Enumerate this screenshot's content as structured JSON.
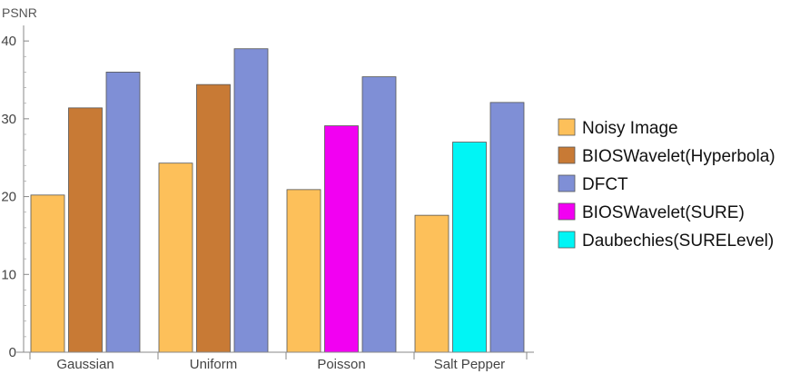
{
  "chart_data": {
    "type": "bar",
    "ylabel": "PSNR",
    "ylim": [
      0,
      42
    ],
    "yticks": [
      0,
      10,
      20,
      30,
      40
    ],
    "grid": false,
    "legend_position": "right",
    "categories": [
      "Gaussian",
      "Uniform",
      "Poisson",
      "Salt Pepper"
    ],
    "series": [
      {
        "name": "Noisy Image",
        "color": "#FDC05A"
      },
      {
        "name": "BIOSWavelet(Hyperbola)",
        "color": "#C87A35"
      },
      {
        "name": "DFCT",
        "color": "#7F8FD6"
      },
      {
        "name": "BIOSWavelet(SURE)",
        "color": "#F200F2"
      },
      {
        "name": "Daubechies(SURELevel)",
        "color": "#00F5F5"
      }
    ],
    "groups": [
      {
        "category": "Gaussian",
        "bars": [
          {
            "series": "Noisy Image",
            "value": 20.2
          },
          {
            "series": "BIOSWavelet(Hyperbola)",
            "value": 31.4
          },
          {
            "series": "DFCT",
            "value": 36.0
          }
        ]
      },
      {
        "category": "Uniform",
        "bars": [
          {
            "series": "Noisy Image",
            "value": 24.3
          },
          {
            "series": "BIOSWavelet(Hyperbola)",
            "value": 34.4
          },
          {
            "series": "DFCT",
            "value": 39.0
          }
        ]
      },
      {
        "category": "Poisson",
        "bars": [
          {
            "series": "Noisy Image",
            "value": 20.9
          },
          {
            "series": "BIOSWavelet(SURE)",
            "value": 29.1
          },
          {
            "series": "DFCT",
            "value": 35.4
          }
        ]
      },
      {
        "category": "Salt Pepper",
        "bars": [
          {
            "series": "Noisy Image",
            "value": 17.6
          },
          {
            "series": "Daubechies(SURELevel)",
            "value": 27.0
          },
          {
            "series": "DFCT",
            "value": 32.1
          }
        ]
      }
    ]
  }
}
